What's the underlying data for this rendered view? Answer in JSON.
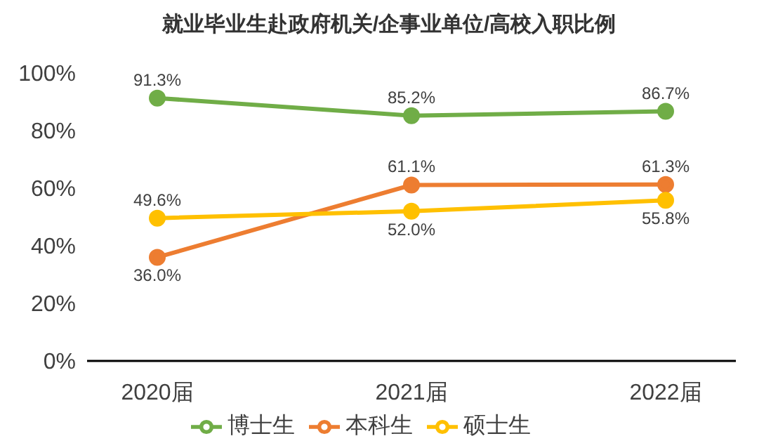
{
  "chart_data": {
    "type": "line",
    "title": "就业毕业生赴政府机关/企事业单位/高校入职比例",
    "categories": [
      "2020届",
      "2021届",
      "2022届"
    ],
    "series": [
      {
        "name": "本科生",
        "color": "#ed7d31",
        "values": [
          36.0,
          61.1,
          61.3
        ],
        "value_labels": [
          "36.0%",
          "61.1%",
          "61.3%"
        ]
      },
      {
        "name": "硕士生",
        "color": "#ffc000",
        "values": [
          49.6,
          52.0,
          55.8
        ],
        "value_labels": [
          "49.6%",
          "52.0%",
          "55.8%"
        ]
      },
      {
        "name": "博士生",
        "color": "#70ad47",
        "values": [
          91.3,
          85.2,
          86.7
        ],
        "value_labels": [
          "91.3%",
          "85.2%",
          "86.7%"
        ]
      }
    ],
    "ylim": [
      0,
      100
    ],
    "yticks": [
      {
        "value": 0,
        "label": "0%"
      },
      {
        "value": 20,
        "label": "20%"
      },
      {
        "value": 40,
        "label": "40%"
      },
      {
        "value": 60,
        "label": "60%"
      },
      {
        "value": 80,
        "label": "80%"
      },
      {
        "value": 100,
        "label": "100%"
      }
    ],
    "grid": false,
    "legend": "bottom",
    "marker": "circle",
    "line_style": "solid"
  }
}
